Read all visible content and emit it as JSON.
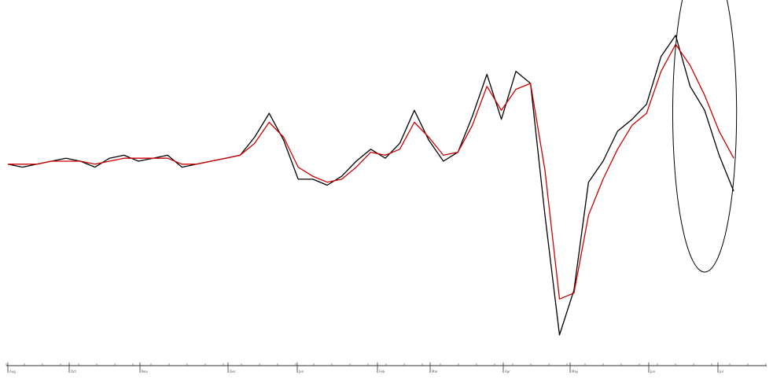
{
  "chart_data": {
    "type": "line",
    "title": "",
    "xlabel": "",
    "ylabel": "",
    "grid": false,
    "legend": "none",
    "x_month_labels": [
      "Aug",
      "Oct",
      "Nov",
      "Dec",
      "Jan",
      "Feb",
      "Mar",
      "Apr",
      "May",
      "Jun",
      "Jul"
    ],
    "ylim": [
      0,
      10
    ],
    "x": [
      0,
      2,
      4,
      6,
      8,
      10,
      12,
      14,
      16,
      18,
      20,
      22,
      24,
      26,
      28,
      30,
      32,
      34,
      36,
      38,
      40,
      42,
      44,
      46,
      48,
      50,
      52,
      54,
      56,
      58,
      60,
      62,
      64,
      66,
      68,
      70,
      72,
      74,
      76,
      78,
      80,
      82,
      84,
      86,
      88,
      90,
      92,
      94,
      96,
      98,
      100
    ],
    "series": [
      {
        "name": "",
        "color": "#000000",
        "values": [
          5.7,
          5.6,
          5.7,
          5.8,
          5.9,
          5.8,
          5.6,
          5.9,
          6.0,
          5.8,
          5.9,
          6.0,
          5.6,
          5.7,
          5.8,
          5.9,
          6.0,
          6.6,
          7.4,
          6.5,
          5.2,
          5.2,
          5.0,
          5.3,
          5.8,
          6.2,
          5.9,
          6.4,
          7.5,
          6.5,
          5.8,
          6.1,
          7.3,
          8.7,
          7.2,
          8.8,
          8.4,
          4.0,
          0.0,
          1.5,
          5.1,
          5.8,
          6.8,
          7.2,
          7.7,
          9.3,
          10.0,
          8.3,
          7.5,
          6.0,
          4.8
        ]
      },
      {
        "name": "",
        "color": "#cc0000",
        "values": [
          5.7,
          5.7,
          5.7,
          5.8,
          5.8,
          5.8,
          5.7,
          5.8,
          5.9,
          5.9,
          5.9,
          5.9,
          5.7,
          5.7,
          5.8,
          5.9,
          6.0,
          6.4,
          7.1,
          6.6,
          5.6,
          5.3,
          5.1,
          5.2,
          5.6,
          6.1,
          6.0,
          6.2,
          7.1,
          6.6,
          6.0,
          6.1,
          7.0,
          8.3,
          7.5,
          8.2,
          8.4,
          5.5,
          1.2,
          1.4,
          4.0,
          5.2,
          6.2,
          7.0,
          7.4,
          8.8,
          9.7,
          9.0,
          8.0,
          6.8,
          5.9
        ]
      }
    ],
    "annotations": [
      {
        "type": "ellipse",
        "center_x": 96,
        "center_y": 7.4,
        "radius_x": 4.4,
        "radius_y": 5.3,
        "color": "#000000"
      }
    ]
  }
}
